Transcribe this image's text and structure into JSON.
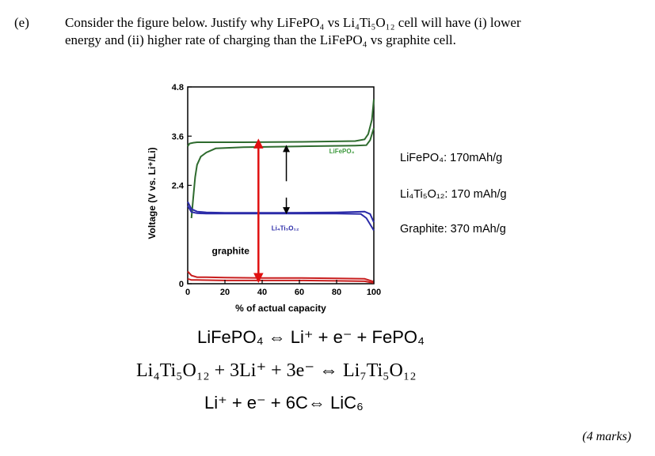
{
  "question": {
    "label": "(e)",
    "line1": "Consider the figure below. Justify why LiFePO₄ vs Li₄Ti₅O₁₂ cell will have (i) lower",
    "line2": "energy and (ii) higher rate of charging than the LiFePO₄ vs graphite cell."
  },
  "chart_data": {
    "type": "line",
    "ylabel": "Voltage (V vs. Li⁺/Li)",
    "xlabel": "% of actual capacity",
    "xlim": [
      0,
      100
    ],
    "ylim": [
      0,
      4.8
    ],
    "xticks": [
      "0",
      "20",
      "40",
      "60",
      "80",
      "100"
    ],
    "yticks": [
      "0",
      "2.4",
      "3.6",
      "4.8"
    ],
    "series_labels": {
      "lfp": "LiFePO₄",
      "lto": "Li₄Ti₅O₁₂",
      "graphite": "graphite"
    },
    "series": [
      {
        "key": "lfp_charge",
        "color": "#2e6b2e",
        "x": [
          0,
          1,
          3,
          5,
          8,
          15,
          30,
          60,
          90,
          95,
          97,
          99,
          100
        ],
        "y": [
          3.35,
          3.42,
          3.44,
          3.45,
          3.45,
          3.45,
          3.45,
          3.46,
          3.48,
          3.52,
          3.65,
          4.0,
          4.5
        ]
      },
      {
        "key": "lfp_discharge",
        "color": "#2e6b2e",
        "x": [
          2,
          3,
          4,
          5,
          7,
          10,
          15,
          30,
          60,
          90,
          96,
          98,
          100
        ],
        "y": [
          1.6,
          2.1,
          2.6,
          2.9,
          3.1,
          3.2,
          3.3,
          3.33,
          3.35,
          3.37,
          3.38,
          3.5,
          3.8
        ]
      },
      {
        "key": "lto_charge",
        "color": "#2b2ba8",
        "x": [
          0,
          2,
          5,
          10,
          20,
          50,
          80,
          95,
          98,
          100
        ],
        "y": [
          2.0,
          1.82,
          1.76,
          1.74,
          1.73,
          1.73,
          1.74,
          1.76,
          1.7,
          1.5
        ]
      },
      {
        "key": "lto_discharge",
        "color": "#2b2ba8",
        "x": [
          0,
          2,
          5,
          10,
          20,
          50,
          80,
          93,
          96,
          100
        ],
        "y": [
          1.9,
          1.75,
          1.72,
          1.71,
          1.71,
          1.71,
          1.71,
          1.7,
          1.6,
          1.3
        ]
      },
      {
        "key": "graphite_charge",
        "color": "#c81e1e",
        "x": [
          0,
          2,
          5,
          10,
          20,
          40,
          60,
          80,
          95,
          100
        ],
        "y": [
          0.3,
          0.2,
          0.16,
          0.16,
          0.15,
          0.14,
          0.14,
          0.13,
          0.12,
          0.05
        ]
      },
      {
        "key": "graphite_discharge",
        "color": "#c81e1e",
        "x": [
          0,
          2,
          5,
          20,
          40,
          60,
          80,
          95,
          100
        ],
        "y": [
          0.12,
          0.09,
          0.09,
          0.08,
          0.08,
          0.08,
          0.07,
          0.06,
          0.02
        ]
      }
    ],
    "annotations": {
      "red_arrow": {
        "x": 38,
        "y_from": 3.42,
        "y_to": 0.14,
        "color": "#e01010"
      },
      "up_arrow": {
        "x": 53,
        "y_from": 2.5,
        "y_to": 3.3
      },
      "down_arrow": {
        "x": 53,
        "y_from": 2.1,
        "y_to": 1.78
      }
    }
  },
  "capacities": {
    "lfp": "LiFePO₄: 170mAh/g",
    "lto": "Li₄Ti₅O₁₂: 170 mAh/g",
    "graphite": "Graphite: 370 mAh/g"
  },
  "equations": {
    "eq1": "LiFePO₄ ⇔ Li⁺ + e⁻ + FePO₄",
    "eq2": "Li₄Ti₅O₁₂ + 3Li⁺ + 3e⁻ ⇔ Li₇Ti₅O₁₂",
    "eq3": "Li⁺ + e⁻ + 6C⇔ LiC₆"
  },
  "marks": "(4 marks)"
}
